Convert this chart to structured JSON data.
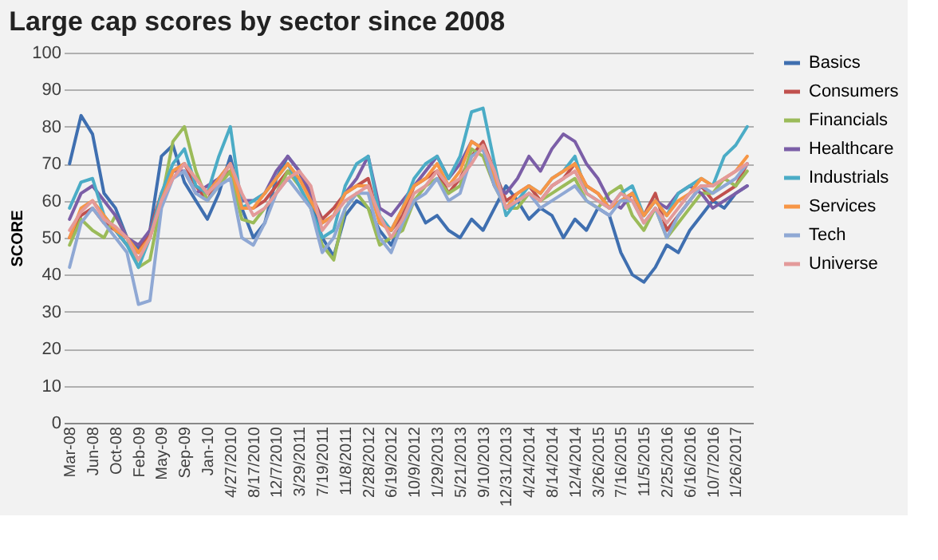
{
  "chart_data": {
    "type": "line",
    "title": "Large cap scores by sector since 2008",
    "ylabel": "SCORE",
    "categories": [
      "Mar-08",
      null,
      "Jun-08",
      null,
      "Oct-08",
      null,
      "Feb-09",
      null,
      "May-09",
      null,
      "Sep-09",
      null,
      "Jan-10",
      null,
      "4/27/2010",
      null,
      "8/17/2010",
      null,
      "12/7/2010",
      null,
      "3/29/2011",
      null,
      "7/19/2011",
      null,
      "11/8/2011",
      null,
      "2/28/2012",
      null,
      "6/19/2012",
      null,
      "10/9/2012",
      null,
      "1/29/2013",
      null,
      "5/21/2013",
      null,
      "9/10/2013",
      null,
      "12/31/2013",
      null,
      "4/24/2014",
      null,
      "8/14/2014",
      null,
      "12/4/2014",
      null,
      "3/26/2015",
      null,
      "7/16/2015",
      null,
      "11/5/2015",
      null,
      "2/25/2016",
      null,
      "6/16/2016",
      null,
      "10/7/2016",
      null,
      "1/26/2017",
      null
    ],
    "series": [
      {
        "name": "Basics",
        "color": "#3f6fb0",
        "values": [
          70,
          83,
          78,
          62,
          58,
          50,
          47,
          52,
          72,
          75,
          65,
          60,
          55,
          62,
          72,
          58,
          50,
          54,
          66,
          72,
          68,
          60,
          50,
          45,
          56,
          60,
          58,
          52,
          48,
          55,
          60,
          54,
          56,
          52,
          50,
          55,
          52,
          58,
          64,
          60,
          55,
          58,
          56,
          50,
          55,
          52,
          58,
          56,
          46,
          40,
          38,
          42,
          48,
          46,
          52,
          56,
          60,
          58,
          62,
          64
        ]
      },
      {
        "name": "Consumers",
        "color": "#c0504d",
        "values": [
          50,
          56,
          58,
          54,
          52,
          48,
          46,
          52,
          62,
          68,
          70,
          64,
          60,
          66,
          68,
          58,
          58,
          60,
          64,
          68,
          66,
          62,
          55,
          58,
          62,
          64,
          66,
          54,
          52,
          56,
          64,
          66,
          68,
          62,
          66,
          72,
          76,
          68,
          60,
          62,
          64,
          60,
          64,
          66,
          70,
          64,
          62,
          58,
          60,
          62,
          56,
          62,
          52,
          56,
          60,
          64,
          60,
          62,
          64,
          70
        ]
      },
      {
        "name": "Financials",
        "color": "#9bbb59",
        "values": [
          48,
          55,
          52,
          50,
          56,
          50,
          42,
          44,
          60,
          76,
          80,
          68,
          60,
          64,
          68,
          55,
          54,
          58,
          62,
          68,
          64,
          58,
          48,
          44,
          58,
          62,
          58,
          48,
          50,
          52,
          60,
          64,
          66,
          62,
          64,
          74,
          72,
          64,
          58,
          58,
          62,
          60,
          62,
          64,
          66,
          60,
          58,
          62,
          64,
          56,
          52,
          58,
          50,
          54,
          58,
          62,
          62,
          66,
          64,
          68
        ]
      },
      {
        "name": "Healthcare",
        "color": "#7b5ea7",
        "values": [
          55,
          62,
          64,
          60,
          56,
          50,
          48,
          52,
          60,
          68,
          68,
          62,
          64,
          66,
          70,
          60,
          60,
          62,
          68,
          72,
          68,
          62,
          54,
          56,
          62,
          66,
          72,
          58,
          56,
          60,
          64,
          68,
          72,
          66,
          70,
          76,
          74,
          64,
          62,
          66,
          72,
          68,
          74,
          78,
          76,
          70,
          66,
          60,
          58,
          62,
          56,
          60,
          58,
          62,
          64,
          62,
          58,
          60,
          62,
          64
        ]
      },
      {
        "name": "Industrials",
        "color": "#4bacc6",
        "values": [
          58,
          65,
          66,
          56,
          52,
          48,
          42,
          50,
          62,
          70,
          74,
          64,
          62,
          72,
          80,
          58,
          60,
          62,
          66,
          70,
          64,
          58,
          50,
          52,
          64,
          70,
          72,
          56,
          52,
          58,
          66,
          70,
          72,
          66,
          72,
          84,
          85,
          70,
          56,
          60,
          64,
          62,
          66,
          68,
          72,
          62,
          60,
          58,
          62,
          64,
          56,
          60,
          56,
          62,
          64,
          66,
          64,
          72,
          75,
          80
        ]
      },
      {
        "name": "Services",
        "color": "#f79646",
        "values": [
          50,
          58,
          60,
          56,
          52,
          50,
          46,
          50,
          60,
          68,
          70,
          66,
          62,
          66,
          70,
          58,
          58,
          62,
          66,
          70,
          66,
          60,
          54,
          56,
          62,
          64,
          64,
          54,
          52,
          58,
          64,
          66,
          70,
          64,
          68,
          76,
          74,
          66,
          58,
          62,
          64,
          62,
          66,
          68,
          70,
          64,
          62,
          58,
          60,
          62,
          56,
          60,
          56,
          60,
          62,
          66,
          64,
          66,
          68,
          72
        ]
      },
      {
        "name": "Tech",
        "color": "#8fa8d4",
        "values": [
          42,
          54,
          58,
          54,
          50,
          46,
          32,
          33,
          58,
          66,
          68,
          62,
          60,
          64,
          66,
          50,
          48,
          54,
          62,
          66,
          62,
          58,
          46,
          50,
          58,
          62,
          62,
          50,
          46,
          54,
          60,
          62,
          66,
          60,
          62,
          72,
          74,
          64,
          58,
          60,
          62,
          58,
          60,
          62,
          64,
          60,
          58,
          56,
          60,
          60,
          54,
          58,
          50,
          56,
          60,
          64,
          62,
          64,
          66,
          70
        ]
      },
      {
        "name": "Universe",
        "color": "#e39a9a",
        "values": [
          52,
          57,
          60,
          55,
          53,
          50,
          44,
          50,
          60,
          66,
          70,
          66,
          62,
          65,
          70,
          62,
          56,
          58,
          62,
          66,
          68,
          64,
          52,
          56,
          60,
          62,
          64,
          56,
          50,
          55,
          62,
          64,
          68,
          64,
          66,
          70,
          75,
          68,
          58,
          60,
          62,
          60,
          64,
          66,
          68,
          62,
          60,
          58,
          62,
          60,
          54,
          58,
          54,
          58,
          62,
          64,
          64,
          66,
          68,
          70
        ]
      }
    ],
    "ylim": [
      0,
      100
    ],
    "yticks": [
      0,
      10,
      20,
      30,
      40,
      50,
      60,
      70,
      80,
      90,
      100
    ],
    "grid": "y",
    "legend": "right",
    "marker": "none",
    "line_style": "solid"
  }
}
